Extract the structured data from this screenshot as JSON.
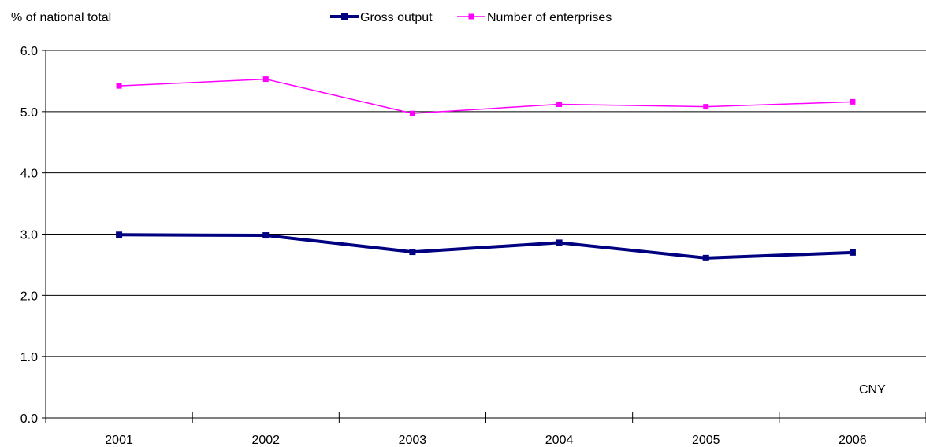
{
  "chart_data": {
    "type": "line",
    "title": "",
    "ylabel": "% of national total",
    "xlabel": "",
    "categories": [
      "2001",
      "2002",
      "2003",
      "2004",
      "2005",
      "2006"
    ],
    "ylim": [
      0,
      6
    ],
    "yticks": [
      "0.0",
      "1.0",
      "2.0",
      "3.0",
      "4.0",
      "5.0",
      "6.0"
    ],
    "grid": true,
    "legend_position": "top-center",
    "annotation": "CNY",
    "series": [
      {
        "name": "Gross output",
        "color": "#000080",
        "marker": "square",
        "values": [
          2.99,
          2.98,
          2.71,
          2.86,
          2.61,
          2.7
        ]
      },
      {
        "name": "Number of enterprises",
        "color": "#ff00ff",
        "marker": "square",
        "values": [
          5.42,
          5.53,
          4.97,
          5.12,
          5.08,
          5.16
        ]
      }
    ]
  }
}
